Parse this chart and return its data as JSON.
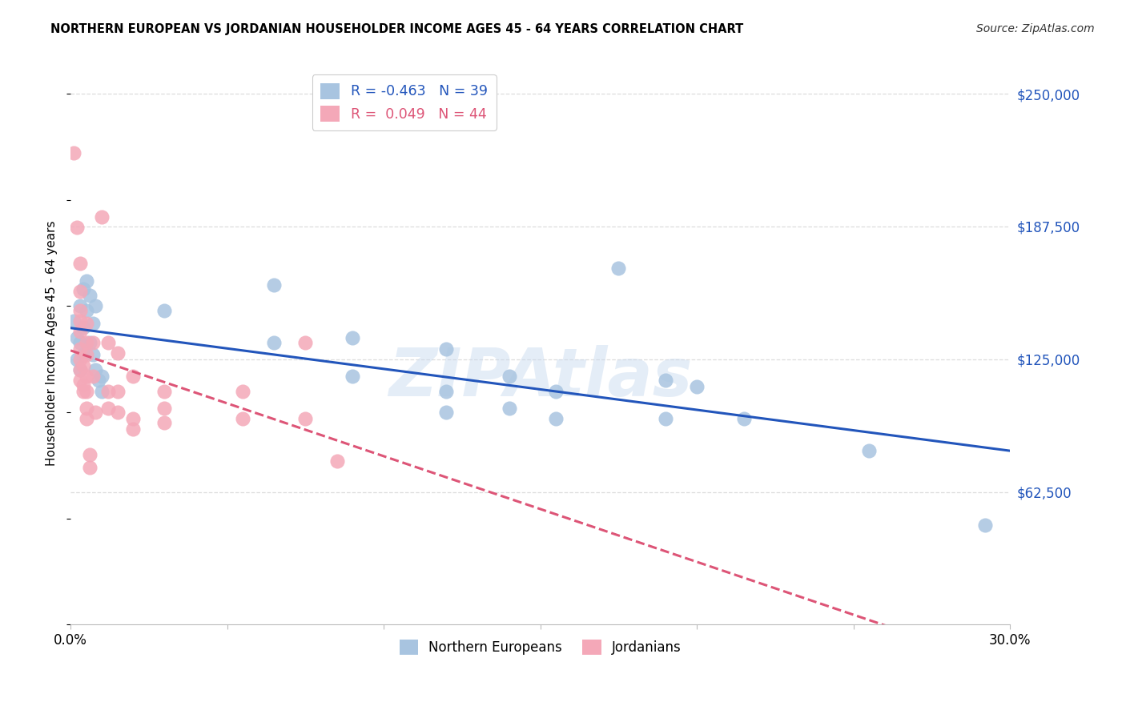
{
  "title": "NORTHERN EUROPEAN VS JORDANIAN HOUSEHOLDER INCOME AGES 45 - 64 YEARS CORRELATION CHART",
  "source": "Source: ZipAtlas.com",
  "ylabel": "Householder Income Ages 45 - 64 years",
  "ytick_labels": [
    "$62,500",
    "$125,000",
    "$187,500",
    "$250,000"
  ],
  "ytick_values": [
    62500,
    125000,
    187500,
    250000
  ],
  "ymin": 0,
  "ymax": 265000,
  "xmin": 0.0,
  "xmax": 0.3,
  "blue_scatter": [
    [
      0.001,
      143000
    ],
    [
      0.002,
      135000
    ],
    [
      0.002,
      125000
    ],
    [
      0.003,
      150000
    ],
    [
      0.003,
      133000
    ],
    [
      0.003,
      120000
    ],
    [
      0.004,
      158000
    ],
    [
      0.004,
      140000
    ],
    [
      0.004,
      127000
    ],
    [
      0.005,
      162000
    ],
    [
      0.005,
      148000
    ],
    [
      0.006,
      155000
    ],
    [
      0.006,
      133000
    ],
    [
      0.007,
      142000
    ],
    [
      0.007,
      127000
    ],
    [
      0.008,
      150000
    ],
    [
      0.008,
      120000
    ],
    [
      0.009,
      115000
    ],
    [
      0.01,
      117000
    ],
    [
      0.01,
      110000
    ],
    [
      0.03,
      148000
    ],
    [
      0.065,
      160000
    ],
    [
      0.065,
      133000
    ],
    [
      0.09,
      135000
    ],
    [
      0.09,
      117000
    ],
    [
      0.12,
      130000
    ],
    [
      0.12,
      110000
    ],
    [
      0.12,
      100000
    ],
    [
      0.14,
      117000
    ],
    [
      0.14,
      102000
    ],
    [
      0.155,
      110000
    ],
    [
      0.155,
      97000
    ],
    [
      0.175,
      168000
    ],
    [
      0.19,
      115000
    ],
    [
      0.19,
      97000
    ],
    [
      0.2,
      112000
    ],
    [
      0.215,
      97000
    ],
    [
      0.255,
      82000
    ],
    [
      0.292,
      47000
    ]
  ],
  "pink_scatter": [
    [
      0.001,
      222000
    ],
    [
      0.002,
      187000
    ],
    [
      0.003,
      170000
    ],
    [
      0.003,
      157000
    ],
    [
      0.003,
      148000
    ],
    [
      0.003,
      143000
    ],
    [
      0.003,
      138000
    ],
    [
      0.003,
      130000
    ],
    [
      0.003,
      125000
    ],
    [
      0.003,
      120000
    ],
    [
      0.003,
      115000
    ],
    [
      0.004,
      122000
    ],
    [
      0.004,
      113000
    ],
    [
      0.004,
      110000
    ],
    [
      0.005,
      142000
    ],
    [
      0.005,
      133000
    ],
    [
      0.005,
      127000
    ],
    [
      0.005,
      117000
    ],
    [
      0.005,
      110000
    ],
    [
      0.005,
      102000
    ],
    [
      0.005,
      97000
    ],
    [
      0.006,
      80000
    ],
    [
      0.006,
      74000
    ],
    [
      0.007,
      133000
    ],
    [
      0.007,
      117000
    ],
    [
      0.008,
      100000
    ],
    [
      0.01,
      192000
    ],
    [
      0.012,
      133000
    ],
    [
      0.012,
      110000
    ],
    [
      0.012,
      102000
    ],
    [
      0.015,
      128000
    ],
    [
      0.015,
      110000
    ],
    [
      0.015,
      100000
    ],
    [
      0.02,
      117000
    ],
    [
      0.02,
      97000
    ],
    [
      0.02,
      92000
    ],
    [
      0.03,
      110000
    ],
    [
      0.03,
      102000
    ],
    [
      0.03,
      95000
    ],
    [
      0.055,
      110000
    ],
    [
      0.055,
      97000
    ],
    [
      0.075,
      133000
    ],
    [
      0.075,
      97000
    ],
    [
      0.085,
      77000
    ]
  ],
  "blue_line_color": "#2255bb",
  "pink_line_color": "#dd5577",
  "scatter_blue_color": "#a8c4e0",
  "scatter_pink_color": "#f4a8b8",
  "watermark": "ZIPAtlas",
  "grid_color": "#dddddd",
  "legend_r_blue": "R = -0.463",
  "legend_n_blue": "N = 39",
  "legend_r_pink": "R =  0.049",
  "legend_n_pink": "N = 44"
}
